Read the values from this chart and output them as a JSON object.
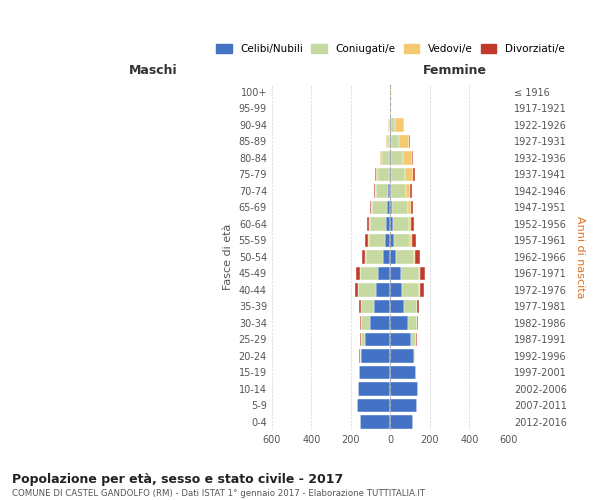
{
  "age_groups": [
    "0-4",
    "5-9",
    "10-14",
    "15-19",
    "20-24",
    "25-29",
    "30-34",
    "35-39",
    "40-44",
    "45-49",
    "50-54",
    "55-59",
    "60-64",
    "65-69",
    "70-74",
    "75-79",
    "80-84",
    "85-89",
    "90-94",
    "95-99",
    "100+"
  ],
  "birth_years": [
    "2012-2016",
    "2007-2011",
    "2002-2006",
    "1997-2001",
    "1992-1996",
    "1987-1991",
    "1982-1986",
    "1977-1981",
    "1972-1976",
    "1967-1971",
    "1962-1966",
    "1957-1961",
    "1952-1956",
    "1947-1951",
    "1942-1946",
    "1937-1941",
    "1932-1936",
    "1927-1931",
    "1922-1926",
    "1917-1921",
    "≤ 1916"
  ],
  "maschi_celibi": [
    155,
    170,
    165,
    158,
    150,
    130,
    105,
    85,
    75,
    65,
    35,
    25,
    20,
    15,
    10,
    8,
    5,
    2,
    2,
    0,
    0
  ],
  "maschi_coniugati": [
    0,
    0,
    0,
    0,
    5,
    20,
    45,
    65,
    90,
    90,
    90,
    85,
    85,
    80,
    65,
    55,
    35,
    10,
    5,
    0,
    0
  ],
  "maschi_vedovi": [
    0,
    0,
    0,
    0,
    0,
    0,
    0,
    0,
    0,
    0,
    5,
    5,
    5,
    5,
    5,
    10,
    10,
    8,
    5,
    0,
    0
  ],
  "maschi_divorziati": [
    0,
    0,
    0,
    0,
    5,
    5,
    5,
    10,
    15,
    20,
    15,
    15,
    10,
    5,
    5,
    5,
    0,
    0,
    0,
    0,
    0
  ],
  "femmine_celibi": [
    115,
    135,
    140,
    130,
    120,
    105,
    90,
    70,
    60,
    55,
    30,
    20,
    15,
    10,
    5,
    5,
    5,
    2,
    2,
    0,
    0
  ],
  "femmine_coniugati": [
    0,
    0,
    0,
    0,
    5,
    25,
    45,
    65,
    85,
    90,
    90,
    80,
    80,
    80,
    75,
    70,
    60,
    40,
    20,
    0,
    0
  ],
  "femmine_vedovi": [
    0,
    0,
    0,
    0,
    0,
    0,
    0,
    0,
    5,
    5,
    5,
    8,
    10,
    15,
    20,
    40,
    45,
    50,
    45,
    5,
    2
  ],
  "femmine_divorziati": [
    0,
    0,
    0,
    0,
    0,
    5,
    5,
    10,
    20,
    25,
    25,
    20,
    15,
    10,
    10,
    10,
    5,
    5,
    0,
    0,
    0
  ],
  "color_celibi": "#4472c4",
  "color_coniugati": "#c5d9a0",
  "color_vedovi": "#f5c96e",
  "color_divorziati": "#c0392b",
  "title": "Popolazione per età, sesso e stato civile - 2017",
  "subtitle": "COMUNE DI CASTEL GANDOLFO (RM) - Dati ISTAT 1° gennaio 2017 - Elaborazione TUTTITALIA.IT",
  "label_maschi": "Maschi",
  "label_femmine": "Femmine",
  "ylabel_left": "Fasce di età",
  "ylabel_right": "Anni di nascita",
  "xlim": 600,
  "bg_color": "#ffffff",
  "grid_color": "#cccccc"
}
